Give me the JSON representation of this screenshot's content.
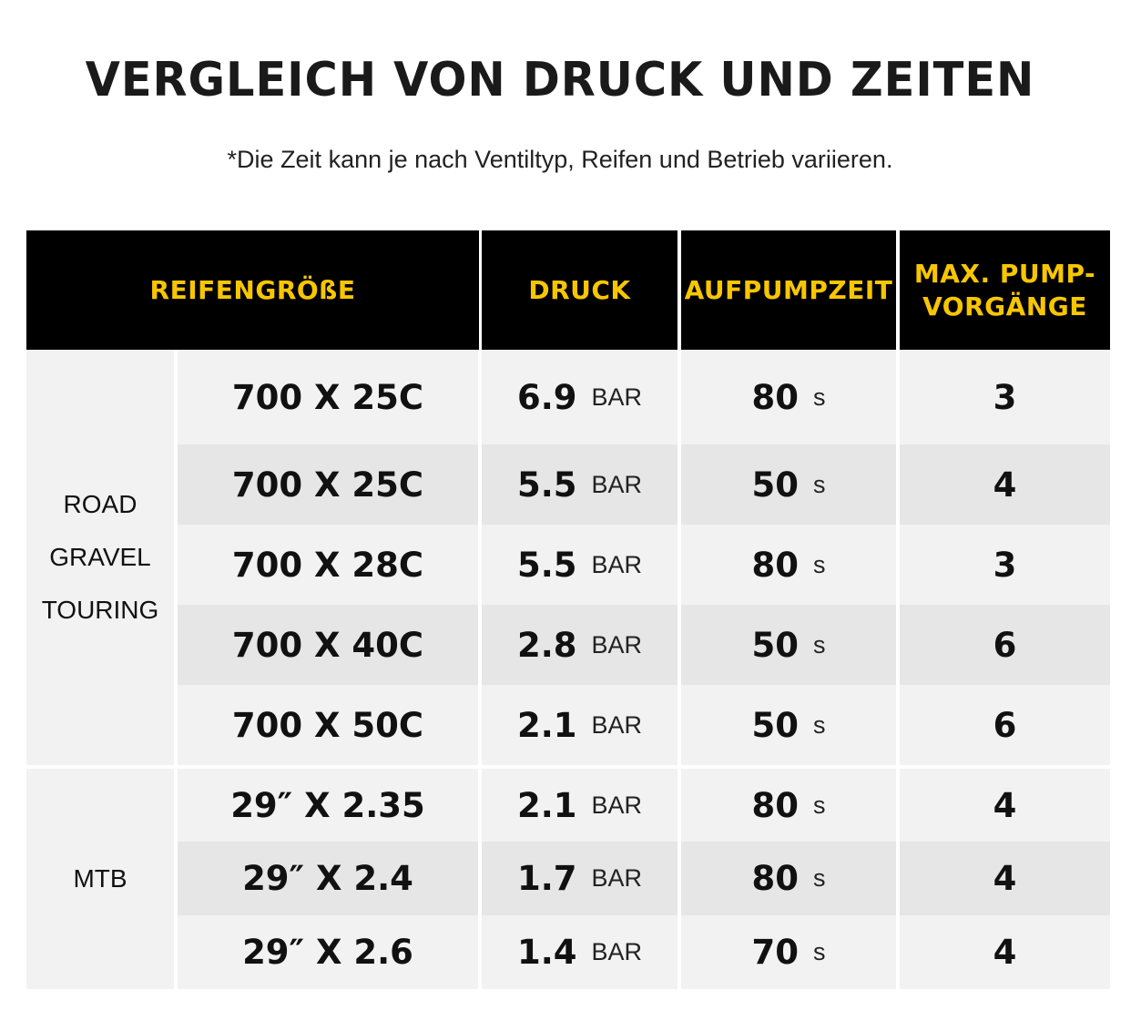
{
  "title": "VERGLEICH VON DRUCK UND ZEITEN",
  "subtitle": "*Die Zeit kann je nach Ventiltyp, Reifen und Betrieb variieren.",
  "colors": {
    "header_bg": "#000000",
    "header_text": "#f7c600",
    "row_light": "#f2f2f2",
    "row_dark": "#e6e6e6"
  },
  "header": {
    "size": "REIFENGRÖßE",
    "pressure": "DRUCK",
    "time": "AUFPUMPZEIT",
    "max_line1": "MAX. PUMP-",
    "max_line2": "VORGÄNGE"
  },
  "categories": [
    {
      "lines": [
        "ROAD",
        "GRAVEL",
        "TOURING"
      ]
    },
    {
      "lines": [
        "MTB"
      ]
    }
  ],
  "rows": [
    {
      "size": "700 X 25C",
      "pressure": "6.9",
      "pressure_unit": "BAR",
      "time": "80",
      "time_unit": "s",
      "max": "3"
    },
    {
      "size": "700 X 25C",
      "pressure": "5.5",
      "pressure_unit": "BAR",
      "time": "50",
      "time_unit": "s",
      "max": "4"
    },
    {
      "size": "700 X 28C",
      "pressure": "5.5",
      "pressure_unit": "BAR",
      "time": "80",
      "time_unit": "s",
      "max": "3"
    },
    {
      "size": "700 X 40C",
      "pressure": "2.8",
      "pressure_unit": "BAR",
      "time": "50",
      "time_unit": "s",
      "max": "6"
    },
    {
      "size": "700 X 50C",
      "pressure": "2.1",
      "pressure_unit": "BAR",
      "time": "50",
      "time_unit": "s",
      "max": "6"
    },
    {
      "size": "29″ X 2.35",
      "pressure": "2.1",
      "pressure_unit": "BAR",
      "time": "80",
      "time_unit": "s",
      "max": "4"
    },
    {
      "size": "29″ X 2.4",
      "pressure": "1.7",
      "pressure_unit": "BAR",
      "time": "80",
      "time_unit": "s",
      "max": "4"
    },
    {
      "size": "29″ X 2.6",
      "pressure": "1.4",
      "pressure_unit": "BAR",
      "time": "70",
      "time_unit": "s",
      "max": "4"
    }
  ]
}
